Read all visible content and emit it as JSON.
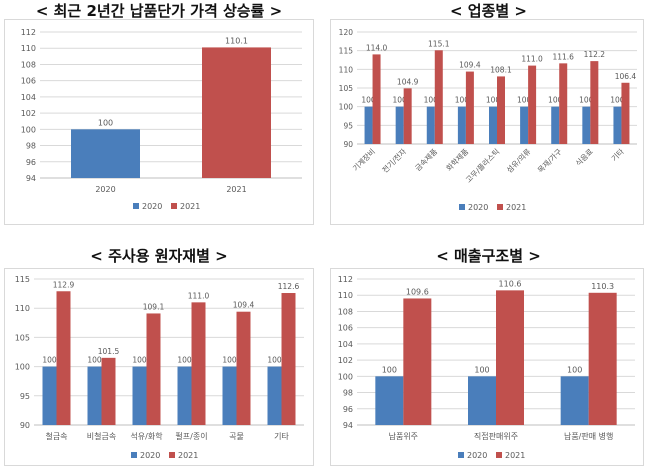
{
  "colors": {
    "s2020": "#4a7ebb",
    "s2021": "#c0504d",
    "grid": "#d9d9d9",
    "axis": "#bfbfbf",
    "text": "#595959"
  },
  "panels": [
    {
      "title": "< 최근 2년간 납품단가 가격 상승률 >"
    },
    {
      "title": "< 업종별 >"
    },
    {
      "title": "< 주사용 원자재별 >"
    },
    {
      "title": "< 매출구조별 >"
    }
  ],
  "chart_data": [
    {
      "type": "bar",
      "title": "< 최근 2년간 납품단가 가격 상승률 >",
      "categories": [
        "2020",
        "2021"
      ],
      "series": [
        {
          "name": "2020",
          "values": [
            100,
            null
          ],
          "labels": [
            "100",
            ""
          ]
        },
        {
          "name": "2021",
          "values": [
            null,
            110.1
          ],
          "labels": [
            "",
            "110.1"
          ]
        }
      ],
      "ylim": [
        94,
        112
      ],
      "yticks": [
        "94",
        "96",
        "98",
        "100",
        "102",
        "104",
        "106",
        "108",
        "110",
        "112"
      ],
      "grid": true,
      "legend": "bottom"
    },
    {
      "type": "bar",
      "title": "< 업종별 >",
      "categories": [
        "기계장비",
        "전기/전자",
        "금속제품",
        "화학제품",
        "고무/플라스틱",
        "섬유/의류",
        "목재/가구",
        "식음료",
        "기타"
      ],
      "series": [
        {
          "name": "2020",
          "values": [
            100,
            100,
            100,
            100,
            100,
            100,
            100,
            100,
            100
          ],
          "labels": [
            "100",
            "100",
            "100",
            "100",
            "100",
            "100",
            "100",
            "100",
            "100"
          ]
        },
        {
          "name": "2021",
          "values": [
            114.0,
            104.9,
            115.1,
            109.4,
            108.1,
            111.0,
            111.6,
            112.2,
            106.4
          ],
          "labels": [
            "114.0",
            "104.9",
            "115.1",
            "109.4",
            "108.1",
            "111.0",
            "111.6",
            "112.2",
            "106.4"
          ]
        }
      ],
      "ylim": [
        90,
        120
      ],
      "yticks": [
        "90",
        "95",
        "100",
        "105",
        "110",
        "115",
        "120"
      ],
      "grid": true,
      "legend": "bottom"
    },
    {
      "type": "bar",
      "title": "< 주사용 원자재별 >",
      "categories": [
        "철금속",
        "비철금속",
        "석유/화학",
        "펄프/종이",
        "곡물",
        "기타"
      ],
      "series": [
        {
          "name": "2020",
          "values": [
            100,
            100,
            100,
            100,
            100,
            100
          ],
          "labels": [
            "100",
            "100",
            "100",
            "100",
            "100",
            "100"
          ]
        },
        {
          "name": "2021",
          "values": [
            112.9,
            101.5,
            109.1,
            111.0,
            109.4,
            112.6
          ],
          "labels": [
            "112.9",
            "101.5",
            "109.1",
            "111.0",
            "109.4",
            "112.6"
          ]
        }
      ],
      "ylim": [
        90,
        115
      ],
      "yticks": [
        "90",
        "95",
        "100",
        "105",
        "110",
        "115"
      ],
      "grid": true,
      "legend": "bottom"
    },
    {
      "type": "bar",
      "title": "< 매출구조별 >",
      "categories": [
        "납품위주",
        "직접판매위주",
        "납품/판매 병행"
      ],
      "series": [
        {
          "name": "2020",
          "values": [
            100,
            100,
            100
          ],
          "labels": [
            "100",
            "100",
            "100"
          ]
        },
        {
          "name": "2021",
          "values": [
            109.6,
            110.6,
            110.3
          ],
          "labels": [
            "109.6",
            "110.6",
            "110.3"
          ]
        }
      ],
      "ylim": [
        94,
        112
      ],
      "yticks": [
        "94",
        "96",
        "98",
        "100",
        "102",
        "104",
        "106",
        "108",
        "110",
        "112"
      ],
      "grid": true,
      "legend": "bottom"
    }
  ]
}
